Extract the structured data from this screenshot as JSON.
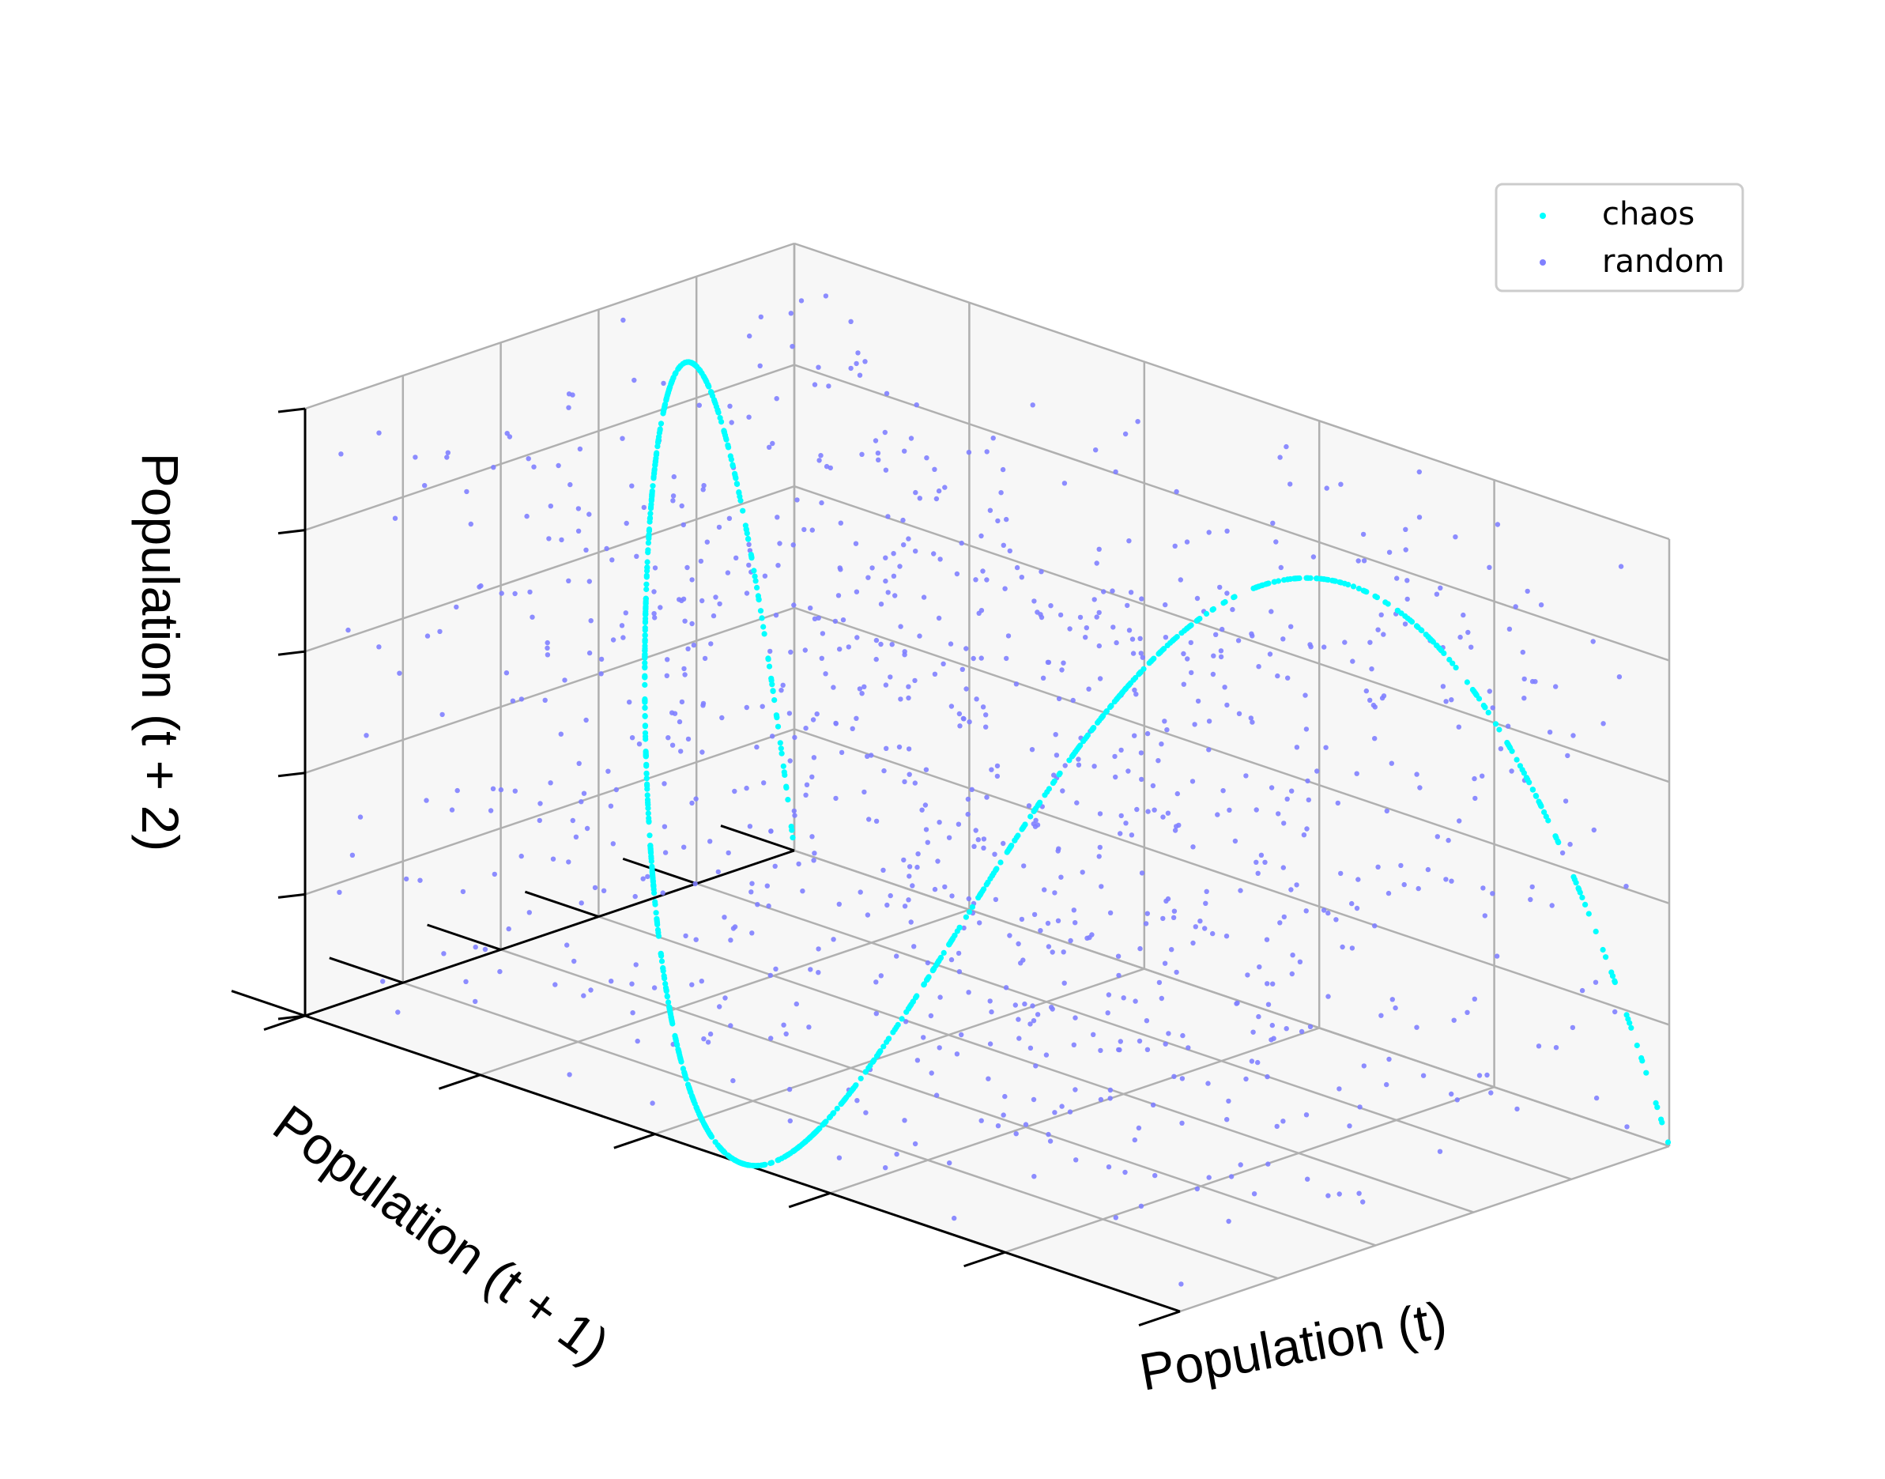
{
  "chart_data": {
    "type": "scatter",
    "projection": "3d",
    "xlabel": "Population (t)",
    "ylabel": "Population (t + 1)",
    "zlabel": "Population (t + 2)",
    "xlim": [
      0,
      1
    ],
    "ylim": [
      0,
      1
    ],
    "zlim": [
      0,
      1
    ],
    "grid": true,
    "tick_labels_shown": false,
    "legend_position": "top-right",
    "series": [
      {
        "name": "chaos",
        "color": "#00ffff",
        "rule": "logistic map x(t+1) = r*x(t)*(1 - x(t)), r = 4",
        "point_count": 1000
      },
      {
        "name": "random",
        "color": "#8080ff",
        "distribution": "uniform on [0,1]^3",
        "point_count": 1000
      }
    ]
  },
  "colors": {
    "chaos": "#00ffff",
    "random": "#8080ff",
    "grid": "#b0b0b0",
    "axis": "#000000"
  }
}
